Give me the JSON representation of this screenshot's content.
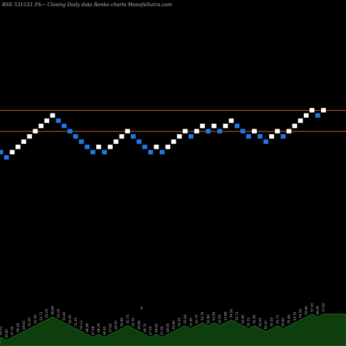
{
  "title": "BSE 531533 3%~   Closing Daily data  Renko  charts MunafaSutra.com",
  "colors": {
    "background": "#000000",
    "up_brick": "#ffffff",
    "down_brick": "#1e78e6",
    "reference_line": "#c8642a",
    "volume_area": "#0e3d0e",
    "volume_edge": "#1f7a1f"
  },
  "chart_data": {
    "type": "renko",
    "title": "BSE 531533 3%~   Closing Daily data  Renko  charts MunafaSutra.com",
    "bricks": [
      {
        "dir": "down",
        "level": 6
      },
      {
        "dir": "down",
        "level": 5
      },
      {
        "dir": "up",
        "level": 6
      },
      {
        "dir": "up",
        "level": 7
      },
      {
        "dir": "up",
        "level": 8
      },
      {
        "dir": "up",
        "level": 9
      },
      {
        "dir": "up",
        "level": 10
      },
      {
        "dir": "up",
        "level": 11
      },
      {
        "dir": "up",
        "level": 12
      },
      {
        "dir": "up",
        "level": 13
      },
      {
        "dir": "down",
        "level": 12
      },
      {
        "dir": "down",
        "level": 11
      },
      {
        "dir": "down",
        "level": 10
      },
      {
        "dir": "down",
        "level": 9
      },
      {
        "dir": "down",
        "level": 8
      },
      {
        "dir": "down",
        "level": 7
      },
      {
        "dir": "down",
        "level": 6
      },
      {
        "dir": "up",
        "level": 7
      },
      {
        "dir": "down",
        "level": 6
      },
      {
        "dir": "up",
        "level": 7
      },
      {
        "dir": "up",
        "level": 8
      },
      {
        "dir": "up",
        "level": 9
      },
      {
        "dir": "up",
        "level": 10
      },
      {
        "dir": "down",
        "level": 9
      },
      {
        "dir": "down",
        "level": 8
      },
      {
        "dir": "down",
        "level": 7
      },
      {
        "dir": "down",
        "level": 6
      },
      {
        "dir": "up",
        "level": 7
      },
      {
        "dir": "down",
        "level": 6
      },
      {
        "dir": "up",
        "level": 7
      },
      {
        "dir": "up",
        "level": 8
      },
      {
        "dir": "up",
        "level": 9
      },
      {
        "dir": "up",
        "level": 10
      },
      {
        "dir": "down",
        "level": 9
      },
      {
        "dir": "up",
        "level": 10
      },
      {
        "dir": "up",
        "level": 11
      },
      {
        "dir": "down",
        "level": 10
      },
      {
        "dir": "up",
        "level": 11
      },
      {
        "dir": "down",
        "level": 10
      },
      {
        "dir": "up",
        "level": 11
      },
      {
        "dir": "up",
        "level": 12
      },
      {
        "dir": "down",
        "level": 11
      },
      {
        "dir": "down",
        "level": 10
      },
      {
        "dir": "down",
        "level": 9
      },
      {
        "dir": "up",
        "level": 10
      },
      {
        "dir": "down",
        "level": 9
      },
      {
        "dir": "down",
        "level": 8
      },
      {
        "dir": "up",
        "level": 9
      },
      {
        "dir": "up",
        "level": 10
      },
      {
        "dir": "down",
        "level": 9
      },
      {
        "dir": "up",
        "level": 10
      },
      {
        "dir": "up",
        "level": 11
      },
      {
        "dir": "up",
        "level": 12
      },
      {
        "dir": "up",
        "level": 13
      },
      {
        "dir": "up",
        "level": 14
      },
      {
        "dir": "down",
        "level": 13
      },
      {
        "dir": "up",
        "level": 14
      }
    ],
    "reference_lines": [
      14,
      10
    ],
    "price_labels": [
      "45.02",
      "45.60",
      "47.10",
      "48.18",
      "49.62",
      "51.00",
      "52.30",
      "53.72",
      "55.05",
      "56.84",
      "55.00",
      "53.40",
      "52.41",
      "51.25",
      "50.13",
      "48.98",
      "47.58",
      "48.26",
      "46.90",
      "47.62",
      "49.50",
      "50.80",
      "52.74",
      "51.50",
      "49.86",
      "48.70",
      "47.55",
      "48.81",
      "47.30",
      "48.05",
      "49.80",
      "51.01",
      "52.44",
      "51.60",
      "52.70",
      "53.76",
      "52.84",
      "53.90",
      "52.55",
      "53.66",
      "54.92",
      "53.71",
      "52.40",
      "51.15",
      "51.90",
      "50.41",
      "49.20",
      "50.33",
      "51.71",
      "50.60",
      "51.84",
      "53.10",
      "54.50",
      "55.80",
      "57.10",
      "56.08",
      "57.50"
    ],
    "stray_label": "8"
  }
}
